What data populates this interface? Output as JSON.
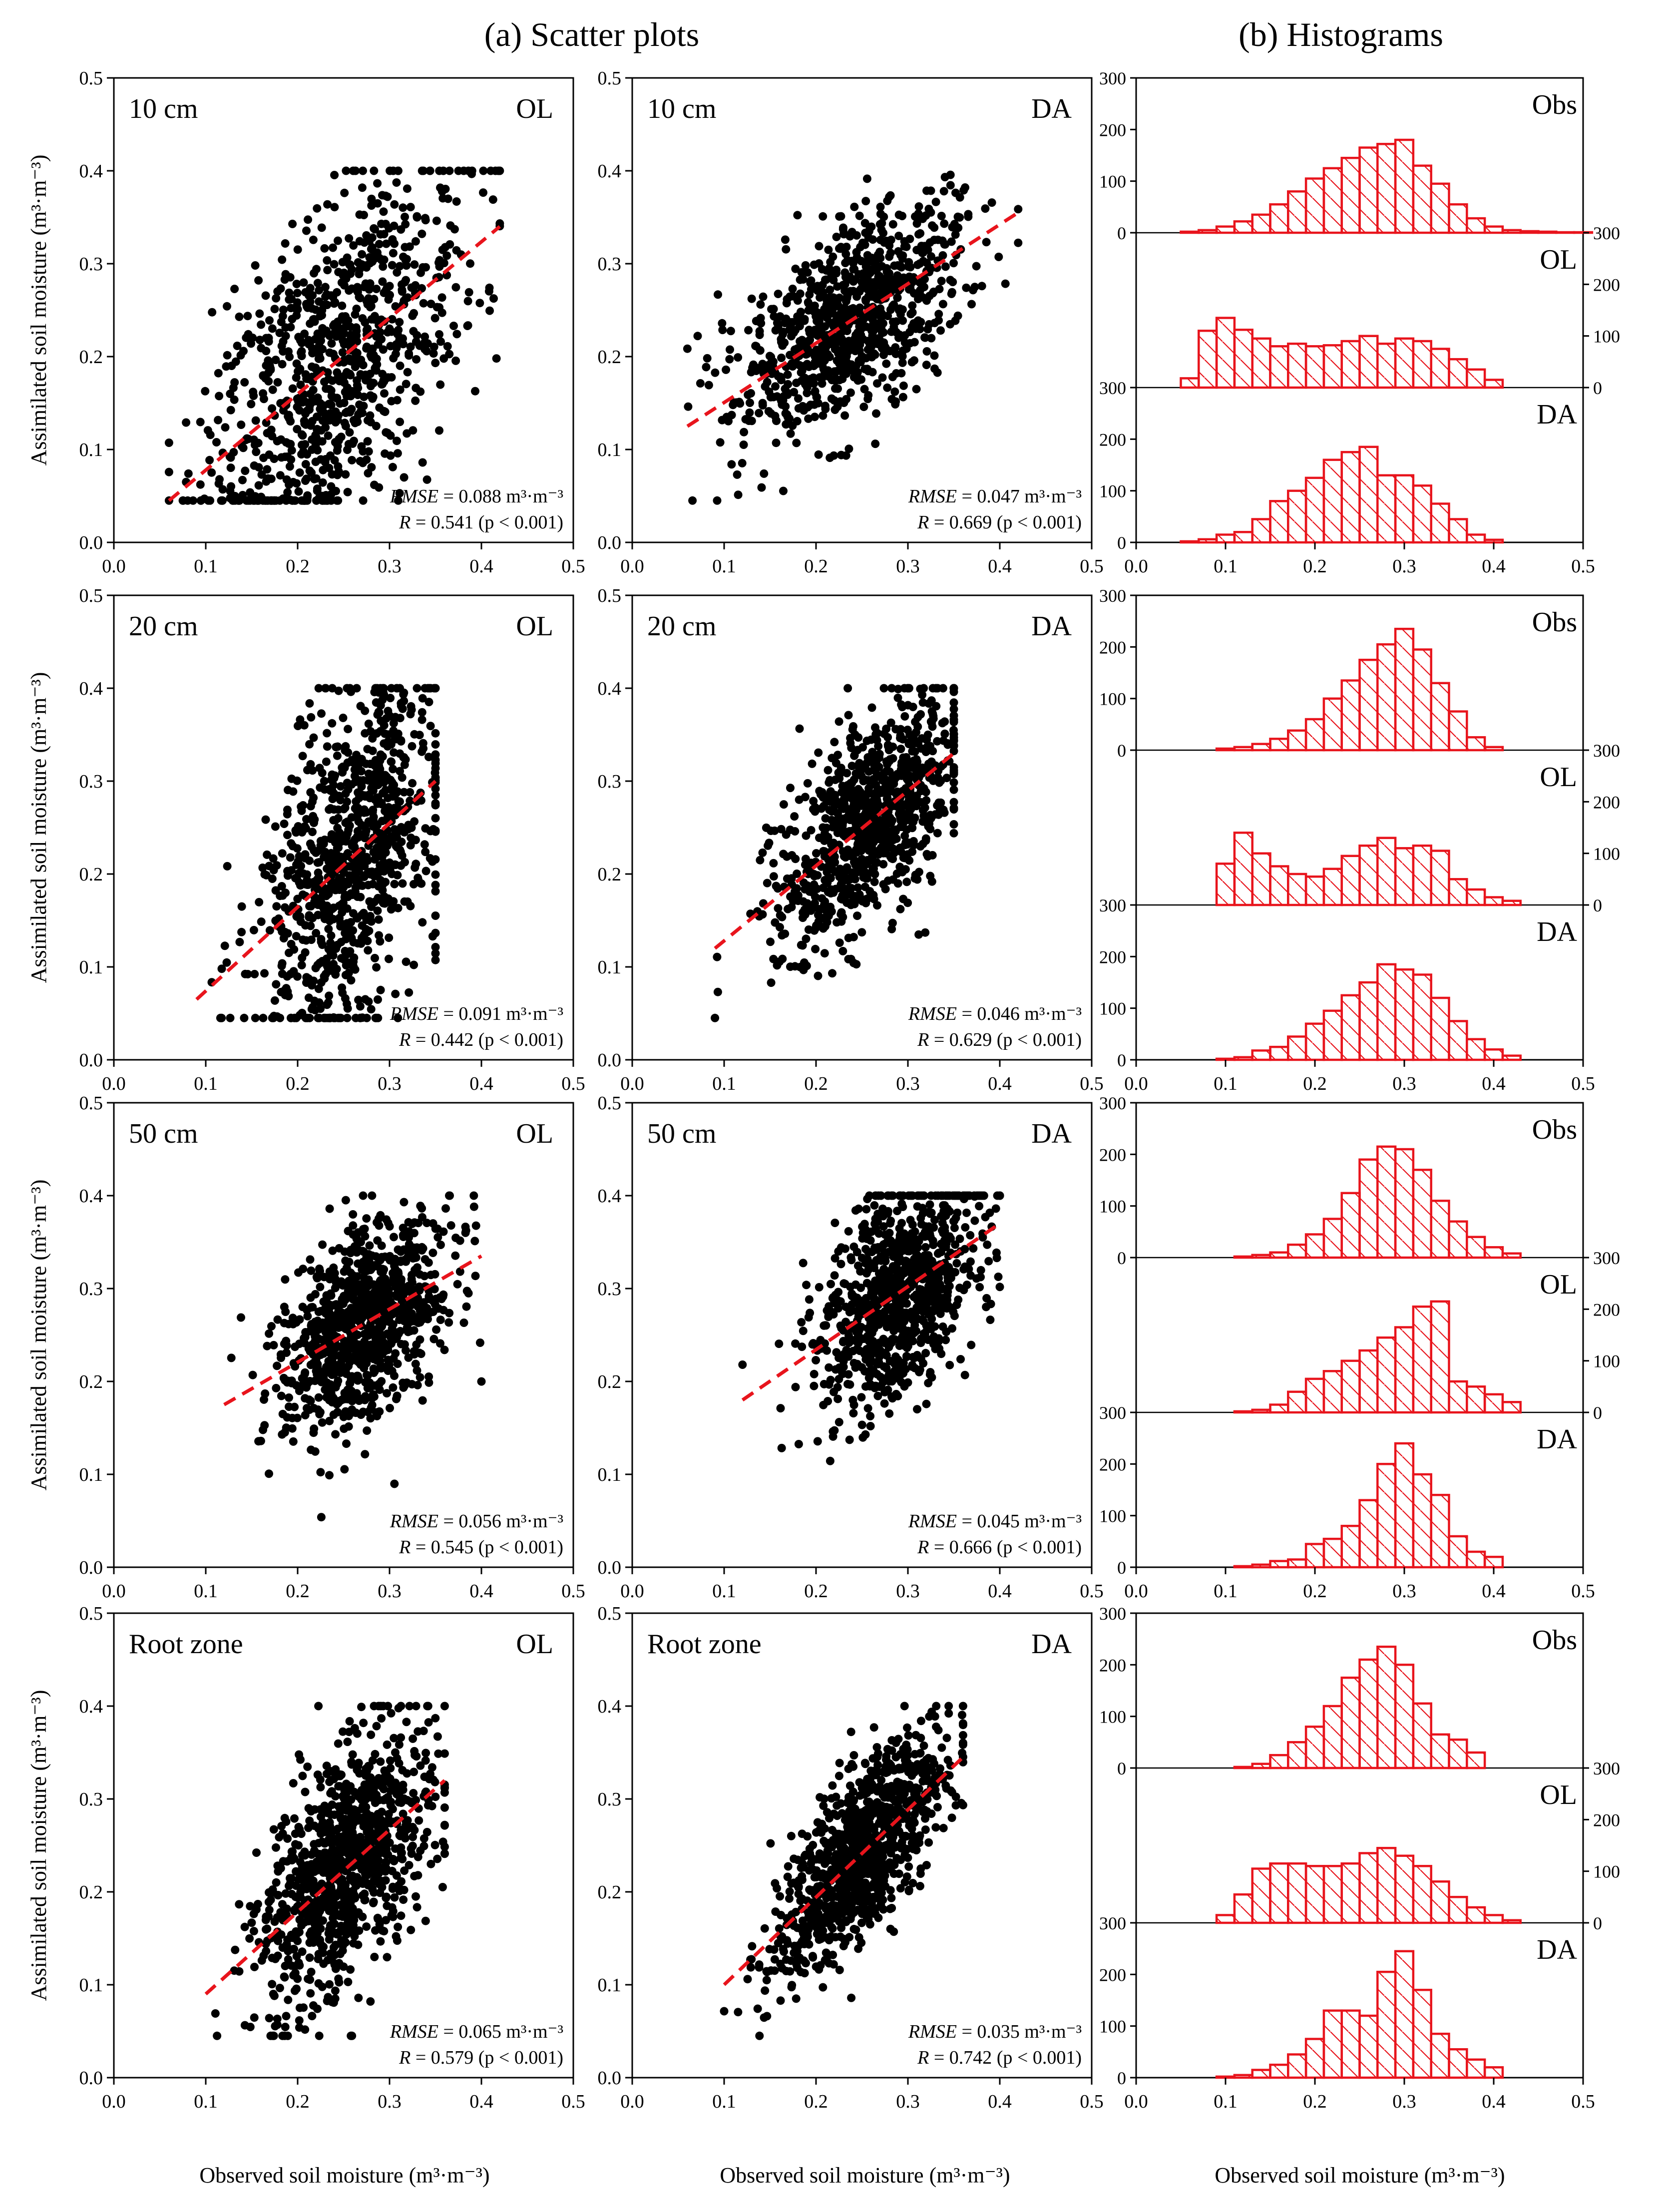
{
  "headers": {
    "scatter_title": "(a) Scatter plots",
    "hist_title": "(b) Histograms"
  },
  "labels": {
    "y_axis": "Assimilated soil moisture (m³·m⁻³)",
    "x_axis": "Observed soil moisture (m³·m⁻³)",
    "rmse_prefix": "RMSE",
    "unit": "m³·m⁻³",
    "p_text": "(p < 0.001)"
  },
  "colors": {
    "points": "#000000",
    "fit_line": "#e8141c",
    "hist": "#e8141c"
  },
  "chart_data": [
    {
      "type": "scatter",
      "panel": "10 cm OL",
      "depth": "10 cm",
      "run": "OL",
      "xlim": [
        0.0,
        0.5
      ],
      "ylim": [
        0.0,
        0.5
      ],
      "xticks": [
        "0.0",
        "0.1",
        "0.2",
        "0.3",
        "0.4",
        "0.5"
      ],
      "yticks": [
        "0.0",
        "0.1",
        "0.2",
        "0.3",
        "0.4",
        "0.5"
      ],
      "rmse": "0.088",
      "r": "0.541",
      "fit": {
        "x": [
          0.06,
          0.42
        ],
        "y": [
          0.045,
          0.34
        ]
      },
      "cloud": {
        "x_range": [
          0.06,
          0.42
        ],
        "center": [
          0.24,
          0.2
        ],
        "n": 900,
        "spread": [
          0.07,
          0.085
        ]
      }
    },
    {
      "type": "scatter",
      "panel": "10 cm DA",
      "depth": "10 cm",
      "run": "DA",
      "xlim": [
        0.0,
        0.5
      ],
      "ylim": [
        0.0,
        0.5
      ],
      "xticks": [
        "0.0",
        "0.1",
        "0.2",
        "0.3",
        "0.4",
        "0.5"
      ],
      "yticks": [
        "0.0",
        "0.1",
        "0.2",
        "0.3",
        "0.4",
        "0.5"
      ],
      "rmse": "0.047",
      "r": "0.669",
      "fit": {
        "x": [
          0.06,
          0.42
        ],
        "y": [
          0.125,
          0.355
        ]
      },
      "cloud": {
        "x_range": [
          0.06,
          0.42
        ],
        "center": [
          0.24,
          0.24
        ],
        "n": 900,
        "spread": [
          0.06,
          0.05
        ]
      }
    },
    {
      "type": "scatter",
      "panel": "20 cm OL",
      "depth": "20 cm",
      "run": "OL",
      "xlim": [
        0.0,
        0.5
      ],
      "ylim": [
        0.0,
        0.5
      ],
      "xticks": [
        "0.0",
        "0.1",
        "0.2",
        "0.3",
        "0.4",
        "0.5"
      ],
      "yticks": [
        "0.0",
        "0.1",
        "0.2",
        "0.3",
        "0.4",
        "0.5"
      ],
      "rmse": "0.091",
      "r": "0.442",
      "fit": {
        "x": [
          0.09,
          0.35
        ],
        "y": [
          0.065,
          0.3
        ]
      },
      "cloud": {
        "x_range": [
          0.09,
          0.35
        ],
        "center": [
          0.26,
          0.21
        ],
        "n": 900,
        "spread": [
          0.05,
          0.09
        ]
      }
    },
    {
      "type": "scatter",
      "panel": "20 cm DA",
      "depth": "20 cm",
      "run": "DA",
      "xlim": [
        0.0,
        0.5
      ],
      "ylim": [
        0.0,
        0.5
      ],
      "xticks": [
        "0.0",
        "0.1",
        "0.2",
        "0.3",
        "0.4",
        "0.5"
      ],
      "yticks": [
        "0.0",
        "0.1",
        "0.2",
        "0.3",
        "0.4",
        "0.5"
      ],
      "rmse": "0.046",
      "r": "0.629",
      "fit": {
        "x": [
          0.09,
          0.35
        ],
        "y": [
          0.12,
          0.33
        ]
      },
      "cloud": {
        "x_range": [
          0.09,
          0.35
        ],
        "center": [
          0.26,
          0.25
        ],
        "n": 900,
        "spread": [
          0.05,
          0.055
        ]
      }
    },
    {
      "type": "scatter",
      "panel": "50 cm OL",
      "depth": "50 cm",
      "run": "OL",
      "xlim": [
        0.0,
        0.5
      ],
      "ylim": [
        0.0,
        0.5
      ],
      "xticks": [
        "0.0",
        "0.1",
        "0.2",
        "0.3",
        "0.4",
        "0.5"
      ],
      "yticks": [
        "0.0",
        "0.1",
        "0.2",
        "0.3",
        "0.4",
        "0.5"
      ],
      "rmse": "0.056",
      "r": "0.545",
      "fit": {
        "x": [
          0.12,
          0.4
        ],
        "y": [
          0.175,
          0.335
        ]
      },
      "cloud": {
        "x_range": [
          0.12,
          0.4
        ],
        "center": [
          0.27,
          0.27
        ],
        "n": 900,
        "spread": [
          0.045,
          0.05
        ]
      }
    },
    {
      "type": "scatter",
      "panel": "50 cm DA",
      "depth": "50 cm",
      "run": "DA",
      "xlim": [
        0.0,
        0.5
      ],
      "ylim": [
        0.0,
        0.5
      ],
      "xticks": [
        "0.0",
        "0.1",
        "0.2",
        "0.3",
        "0.4",
        "0.5"
      ],
      "yticks": [
        "0.0",
        "0.1",
        "0.2",
        "0.3",
        "0.4",
        "0.5"
      ],
      "rmse": "0.045",
      "r": "0.666",
      "fit": {
        "x": [
          0.12,
          0.4
        ],
        "y": [
          0.18,
          0.37
        ]
      },
      "cloud": {
        "x_range": [
          0.12,
          0.4
        ],
        "center": [
          0.29,
          0.3
        ],
        "n": 900,
        "spread": [
          0.045,
          0.055
        ]
      }
    },
    {
      "type": "scatter",
      "panel": "Root zone OL",
      "depth": "Root zone",
      "run": "OL",
      "xlim": [
        0.0,
        0.5
      ],
      "ylim": [
        0.0,
        0.5
      ],
      "xticks": [
        "0.0",
        "0.1",
        "0.2",
        "0.3",
        "0.4",
        "0.5"
      ],
      "yticks": [
        "0.0",
        "0.1",
        "0.2",
        "0.3",
        "0.4",
        "0.5"
      ],
      "rmse": "0.065",
      "r": "0.579",
      "fit": {
        "x": [
          0.1,
          0.36
        ],
        "y": [
          0.09,
          0.32
        ]
      },
      "cloud": {
        "x_range": [
          0.1,
          0.36
        ],
        "center": [
          0.25,
          0.22
        ],
        "n": 1000,
        "spread": [
          0.045,
          0.06
        ]
      }
    },
    {
      "type": "scatter",
      "panel": "Root zone DA",
      "depth": "Root zone",
      "run": "DA",
      "xlim": [
        0.0,
        0.5
      ],
      "ylim": [
        0.0,
        0.5
      ],
      "xticks": [
        "0.0",
        "0.1",
        "0.2",
        "0.3",
        "0.4",
        "0.5"
      ],
      "yticks": [
        "0.0",
        "0.1",
        "0.2",
        "0.3",
        "0.4",
        "0.5"
      ],
      "rmse": "0.035",
      "r": "0.742",
      "fit": {
        "x": [
          0.1,
          0.36
        ],
        "y": [
          0.1,
          0.345
        ]
      },
      "cloud": {
        "x_range": [
          0.1,
          0.36
        ],
        "center": [
          0.25,
          0.245
        ],
        "n": 1000,
        "spread": [
          0.045,
          0.045
        ]
      }
    },
    {
      "type": "bar",
      "panel": "Histograms 10 cm",
      "xlim": [
        0.0,
        0.5
      ],
      "xticks": [
        "0.0",
        "0.1",
        "0.2",
        "0.3",
        "0.4",
        "0.5"
      ],
      "bin_start": 0.05,
      "bin_width": 0.02,
      "ymax": 300,
      "subplots": [
        {
          "label": "Obs",
          "axis": "left",
          "yticks": [
            "300",
            "200",
            "100",
            "0"
          ],
          "values": [
            2,
            5,
            12,
            22,
            35,
            55,
            80,
            105,
            125,
            145,
            165,
            172,
            180,
            130,
            95,
            55,
            28,
            12,
            5,
            3,
            2,
            1,
            1
          ]
        },
        {
          "label": "OL",
          "axis": "right",
          "yticks": [
            "300",
            "200",
            "100",
            "0"
          ],
          "values": [
            18,
            110,
            135,
            112,
            95,
            80,
            85,
            80,
            82,
            90,
            100,
            85,
            95,
            90,
            75,
            55,
            35,
            15
          ]
        },
        {
          "label": "DA",
          "axis": "left",
          "yticks": [
            "300",
            "200",
            "100",
            "0"
          ],
          "values": [
            2,
            6,
            15,
            20,
            45,
            80,
            100,
            125,
            160,
            175,
            185,
            130,
            130,
            110,
            75,
            45,
            15,
            5
          ]
        }
      ]
    },
    {
      "type": "bar",
      "panel": "Histograms 20 cm",
      "xlim": [
        0.0,
        0.5
      ],
      "xticks": [
        "0.0",
        "0.1",
        "0.2",
        "0.3",
        "0.4",
        "0.5"
      ],
      "bin_start": 0.05,
      "bin_width": 0.02,
      "ymax": 300,
      "subplots": [
        {
          "label": "Obs",
          "axis": "left",
          "yticks": [
            "300",
            "200",
            "100",
            "0"
          ],
          "values": [
            0,
            0,
            3,
            6,
            12,
            22,
            38,
            60,
            100,
            135,
            175,
            205,
            235,
            195,
            130,
            75,
            25,
            6
          ]
        },
        {
          "label": "OL",
          "axis": "right",
          "yticks": [
            "300",
            "200",
            "100",
            "0"
          ],
          "values": [
            0,
            0,
            80,
            140,
            100,
            75,
            60,
            55,
            70,
            95,
            115,
            130,
            110,
            115,
            105,
            50,
            30,
            15,
            8
          ]
        },
        {
          "label": "DA",
          "axis": "left",
          "yticks": [
            "300",
            "200",
            "100",
            "0"
          ],
          "values": [
            0,
            0,
            2,
            5,
            18,
            25,
            45,
            70,
            95,
            125,
            150,
            185,
            175,
            165,
            120,
            75,
            40,
            20,
            8
          ]
        }
      ]
    },
    {
      "type": "bar",
      "panel": "Histograms 50 cm",
      "xlim": [
        0.0,
        0.5
      ],
      "xticks": [
        "0.0",
        "0.1",
        "0.2",
        "0.3",
        "0.4",
        "0.5"
      ],
      "bin_start": 0.11,
      "bin_width": 0.02,
      "ymax": 300,
      "subplots": [
        {
          "label": "Obs",
          "axis": "left",
          "yticks": [
            "300",
            "200",
            "100",
            "0"
          ],
          "values": [
            2,
            5,
            10,
            25,
            45,
            75,
            125,
            190,
            215,
            210,
            170,
            110,
            70,
            40,
            20,
            8
          ]
        },
        {
          "label": "OL",
          "axis": "right",
          "yticks": [
            "300",
            "200",
            "100",
            "0"
          ],
          "values": [
            2,
            5,
            15,
            40,
            65,
            80,
            100,
            120,
            145,
            165,
            205,
            215,
            60,
            50,
            35,
            20
          ]
        },
        {
          "label": "DA",
          "axis": "left",
          "yticks": [
            "300",
            "200",
            "100",
            "0"
          ],
          "values": [
            2,
            5,
            12,
            15,
            45,
            55,
            80,
            130,
            200,
            240,
            180,
            140,
            60,
            30,
            20
          ]
        }
      ]
    },
    {
      "type": "bar",
      "panel": "Histograms Root zone",
      "xlim": [
        0.0,
        0.5
      ],
      "xticks": [
        "0.0",
        "0.1",
        "0.2",
        "0.3",
        "0.4",
        "0.5"
      ],
      "bin_start": 0.09,
      "bin_width": 0.02,
      "ymax": 300,
      "subplots": [
        {
          "label": "Obs",
          "axis": "left",
          "yticks": [
            "300",
            "200",
            "100",
            "0"
          ],
          "values": [
            0,
            2,
            8,
            25,
            50,
            80,
            120,
            175,
            210,
            235,
            200,
            125,
            65,
            55,
            30
          ]
        },
        {
          "label": "OL",
          "axis": "right",
          "yticks": [
            "300",
            "200",
            "100",
            "0"
          ],
          "values": [
            15,
            55,
            105,
            115,
            115,
            110,
            110,
            115,
            135,
            145,
            130,
            110,
            80,
            50,
            30,
            15,
            5
          ]
        },
        {
          "label": "DA",
          "axis": "left",
          "yticks": [
            "300",
            "200",
            "100",
            "0"
          ],
          "values": [
            2,
            5,
            15,
            25,
            45,
            75,
            130,
            130,
            120,
            205,
            245,
            170,
            85,
            55,
            35,
            20
          ]
        }
      ]
    }
  ]
}
